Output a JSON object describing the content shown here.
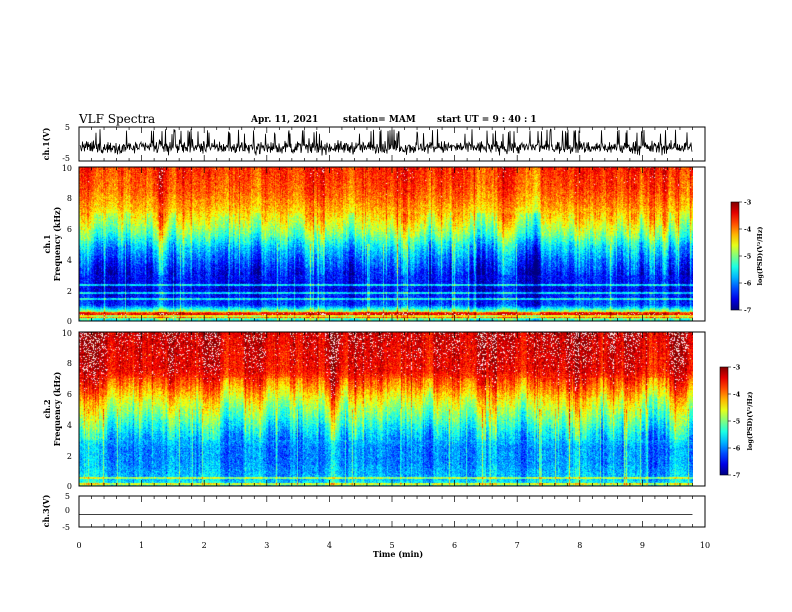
{
  "chart_data": {
    "type": "heatmap",
    "title": "VLF Spectra",
    "date": "Apr. 11, 2021",
    "station": "station= MAM",
    "start_ut": "start  UT =   9 : 40 : 1",
    "xlabel": "Time (min)",
    "xlim": [
      0,
      10
    ],
    "x_ticks": [
      "0",
      "1",
      "2",
      "3",
      "4",
      "5",
      "6",
      "7",
      "8",
      "9",
      "10"
    ],
    "data_end_min": 9.8,
    "panels": [
      {
        "name": "ch1-waveform",
        "type": "line",
        "ylabel": "ch.1(V)",
        "ylim": [
          -5,
          5
        ],
        "y_ticks": [
          "5",
          "-5"
        ],
        "signal": "noise",
        "mean_v": -1.0,
        "amplitude_v": 3.2
      },
      {
        "name": "ch1-spectrogram",
        "type": "heatmap",
        "ylabel": "ch.1\nFrequency (kHz)",
        "ylim": [
          0,
          10
        ],
        "y_ticks": [
          "0",
          "2",
          "4",
          "6",
          "8",
          "10"
        ],
        "colorbar": {
          "label": "log(PSD)(V²/Hz)",
          "range": [
            -7,
            -3
          ],
          "ticks": [
            "-3",
            "-4",
            "-5",
            "-6",
            "-7"
          ]
        },
        "profile_log_psd": [
          {
            "khz": 0.0,
            "v": -5.4
          },
          {
            "khz": 0.4,
            "v": -4.2
          },
          {
            "khz": 1.0,
            "v": -6.2
          },
          {
            "khz": 2.0,
            "v": -6.5
          },
          {
            "khz": 3.0,
            "v": -6.4
          },
          {
            "khz": 4.0,
            "v": -6.0
          },
          {
            "khz": 4.8,
            "v": -5.6
          },
          {
            "khz": 5.6,
            "v": -5.0
          },
          {
            "khz": 6.5,
            "v": -4.5
          },
          {
            "khz": 7.5,
            "v": -4.1
          },
          {
            "khz": 8.5,
            "v": -3.8
          },
          {
            "khz": 10.0,
            "v": -3.6
          }
        ],
        "lines_khz": [
          0.2,
          0.45,
          0.5,
          1.4,
          1.8,
          2.3
        ]
      },
      {
        "name": "ch2-spectrogram",
        "type": "heatmap",
        "ylabel": "ch.2\nFrequency (kHz)",
        "ylim": [
          0,
          10
        ],
        "y_ticks": [
          "0",
          "2",
          "4",
          "6",
          "8",
          "10"
        ],
        "colorbar": {
          "label": "log(PSD)(V²/Hz)",
          "range": [
            -7,
            -3
          ],
          "ticks": [
            "-3",
            "-4",
            "-5",
            "-6",
            "-7"
          ]
        },
        "profile_log_psd": [
          {
            "khz": 0.0,
            "v": -5.4
          },
          {
            "khz": 0.5,
            "v": -5.7
          },
          {
            "khz": 1.5,
            "v": -5.9
          },
          {
            "khz": 2.5,
            "v": -5.9
          },
          {
            "khz": 3.5,
            "v": -5.5
          },
          {
            "khz": 4.5,
            "v": -5.0
          },
          {
            "khz": 5.5,
            "v": -4.5
          },
          {
            "khz": 6.5,
            "v": -3.9
          },
          {
            "khz": 7.5,
            "v": -3.4
          },
          {
            "khz": 10.0,
            "v": -3.2
          }
        ],
        "lines_khz": [
          0.1,
          0.5
        ]
      },
      {
        "name": "ch3-waveform",
        "type": "line",
        "ylabel": "ch.3(V)",
        "ylim": [
          -5,
          5
        ],
        "y_ticks": [
          "5",
          "0",
          "-5"
        ],
        "signal": "flat",
        "mean_v": -1.0,
        "amplitude_v": 0
      }
    ]
  }
}
